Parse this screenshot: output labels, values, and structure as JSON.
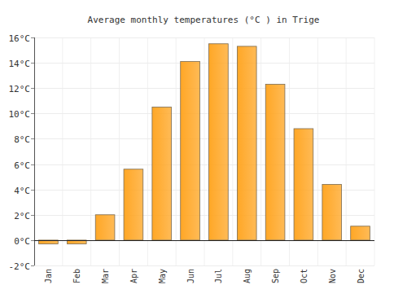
{
  "chart_data": {
    "type": "bar",
    "title": "Average monthly temperatures (°C ) in Trige",
    "categories": [
      "Jan",
      "Feb",
      "Mar",
      "Apr",
      "May",
      "Jun",
      "Jul",
      "Aug",
      "Sep",
      "Oct",
      "Nov",
      "Dec"
    ],
    "values": [
      -0.3,
      -0.3,
      2.0,
      5.6,
      10.5,
      14.1,
      15.5,
      15.3,
      12.3,
      8.8,
      4.4,
      1.1
    ],
    "color": "#ffa726",
    "ylim": [
      -2,
      16
    ],
    "yticks": [
      {
        "value": -2,
        "label": "-2°C"
      },
      {
        "value": 0,
        "label": "0°C"
      },
      {
        "value": 2,
        "label": "2°C"
      },
      {
        "value": 4,
        "label": "4°C"
      },
      {
        "value": 6,
        "label": "6°C"
      },
      {
        "value": 8,
        "label": "8°C"
      },
      {
        "value": 10,
        "label": "10°C"
      },
      {
        "value": 12,
        "label": "12°C"
      },
      {
        "value": 14,
        "label": "14°C"
      },
      {
        "value": 16,
        "label": "16°C"
      }
    ],
    "grid": true
  }
}
